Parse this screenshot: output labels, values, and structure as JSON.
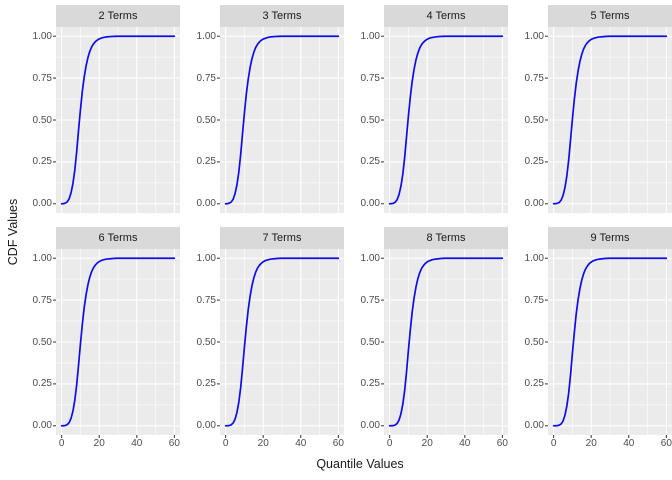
{
  "figure": {
    "xlabel": "Quantile Values",
    "ylabel": "CDF Values"
  },
  "chart_data": {
    "type": "line",
    "title": "",
    "xlabel": "Quantile Values",
    "ylabel": "CDF Values",
    "facets": [
      "2 Terms",
      "3 Terms",
      "4 Terms",
      "5 Terms",
      "6 Terms",
      "7 Terms",
      "8 Terms",
      "9 Terms"
    ],
    "grid": "on",
    "legend": "none",
    "xlim": [
      0,
      60
    ],
    "ylim": [
      0,
      1
    ],
    "x_ticks": [
      0,
      20,
      40,
      60
    ],
    "y_ticks": [
      1.0,
      0.75,
      0.5,
      0.25,
      0.0
    ],
    "x_minor_ticks": [
      10,
      30,
      50
    ],
    "y_minor_ticks": [
      0.125,
      0.375,
      0.625,
      0.875
    ],
    "x_tick_labels": [
      "0",
      "20",
      "40",
      "60"
    ],
    "y_tick_labels": [
      "1.00",
      "0.75",
      "0.50",
      "0.25",
      "0.00"
    ],
    "colors": {
      "line": "#0d0de8",
      "panel_bg": "#ebebeb",
      "strip_bg": "#d9d9d9",
      "grid": "#ffffff",
      "axis_text": "#4d4d4d",
      "tick_mark": "#333333"
    },
    "x": [
      0,
      1,
      2,
      3,
      4,
      5,
      6,
      7,
      8,
      9,
      10,
      11,
      12,
      13,
      14,
      15,
      16,
      17,
      18,
      19,
      20,
      21,
      22,
      23,
      24,
      26,
      28,
      30,
      35,
      40,
      50,
      60
    ],
    "series": [
      {
        "name": "2 Terms",
        "values": [
          0,
          0.001,
          0.004,
          0.012,
          0.03,
          0.065,
          0.12,
          0.2,
          0.31,
          0.44,
          0.56,
          0.67,
          0.755,
          0.822,
          0.873,
          0.91,
          0.937,
          0.955,
          0.968,
          0.977,
          0.984,
          0.988,
          0.992,
          0.994,
          0.996,
          0.998,
          0.999,
          1,
          1,
          1,
          1,
          1
        ]
      },
      {
        "name": "3 Terms",
        "values": [
          0,
          0.001,
          0.004,
          0.011,
          0.027,
          0.06,
          0.112,
          0.188,
          0.294,
          0.42,
          0.542,
          0.654,
          0.742,
          0.812,
          0.865,
          0.904,
          0.933,
          0.952,
          0.966,
          0.976,
          0.983,
          0.987,
          0.991,
          0.994,
          0.996,
          0.998,
          0.999,
          1,
          1,
          1,
          1,
          1
        ]
      },
      {
        "name": "4 Terms",
        "values": [
          0,
          0.001,
          0.003,
          0.01,
          0.025,
          0.055,
          0.104,
          0.176,
          0.277,
          0.401,
          0.524,
          0.637,
          0.73,
          0.802,
          0.858,
          0.899,
          0.929,
          0.95,
          0.964,
          0.974,
          0.982,
          0.987,
          0.991,
          0.993,
          0.995,
          0.998,
          0.999,
          1,
          1,
          1,
          1,
          1
        ]
      },
      {
        "name": "5 Terms",
        "values": [
          0,
          0.001,
          0.003,
          0.008,
          0.022,
          0.049,
          0.095,
          0.164,
          0.261,
          0.382,
          0.506,
          0.621,
          0.717,
          0.792,
          0.85,
          0.893,
          0.925,
          0.947,
          0.962,
          0.973,
          0.981,
          0.986,
          0.99,
          0.993,
          0.995,
          0.997,
          0.999,
          1,
          1,
          1,
          1,
          1
        ]
      },
      {
        "name": "6 Terms",
        "values": [
          0,
          0,
          0.002,
          0.007,
          0.019,
          0.044,
          0.087,
          0.152,
          0.244,
          0.362,
          0.488,
          0.604,
          0.704,
          0.782,
          0.842,
          0.888,
          0.921,
          0.944,
          0.96,
          0.972,
          0.98,
          0.986,
          0.99,
          0.993,
          0.995,
          0.997,
          0.999,
          1,
          1,
          1,
          1,
          1
        ]
      },
      {
        "name": "7 Terms",
        "values": [
          0,
          0,
          0.002,
          0.006,
          0.017,
          0.039,
          0.079,
          0.14,
          0.228,
          0.343,
          0.47,
          0.588,
          0.691,
          0.772,
          0.835,
          0.882,
          0.917,
          0.942,
          0.958,
          0.97,
          0.979,
          0.985,
          0.989,
          0.992,
          0.995,
          0.997,
          0.999,
          1,
          1,
          1,
          1,
          1
        ]
      },
      {
        "name": "8 Terms",
        "values": [
          0,
          0,
          0.001,
          0.005,
          0.014,
          0.034,
          0.071,
          0.128,
          0.211,
          0.323,
          0.452,
          0.571,
          0.679,
          0.762,
          0.827,
          0.877,
          0.913,
          0.939,
          0.956,
          0.969,
          0.978,
          0.984,
          0.988,
          0.992,
          0.994,
          0.997,
          0.999,
          1,
          1,
          1,
          1,
          1
        ]
      },
      {
        "name": "9 Terms",
        "values": [
          0,
          0,
          0.001,
          0.004,
          0.011,
          0.028,
          0.062,
          0.116,
          0.195,
          0.304,
          0.434,
          0.555,
          0.666,
          0.752,
          0.819,
          0.871,
          0.909,
          0.936,
          0.954,
          0.968,
          0.977,
          0.984,
          0.988,
          0.992,
          0.994,
          0.997,
          0.999,
          1,
          1,
          1,
          1,
          1
        ]
      }
    ]
  }
}
